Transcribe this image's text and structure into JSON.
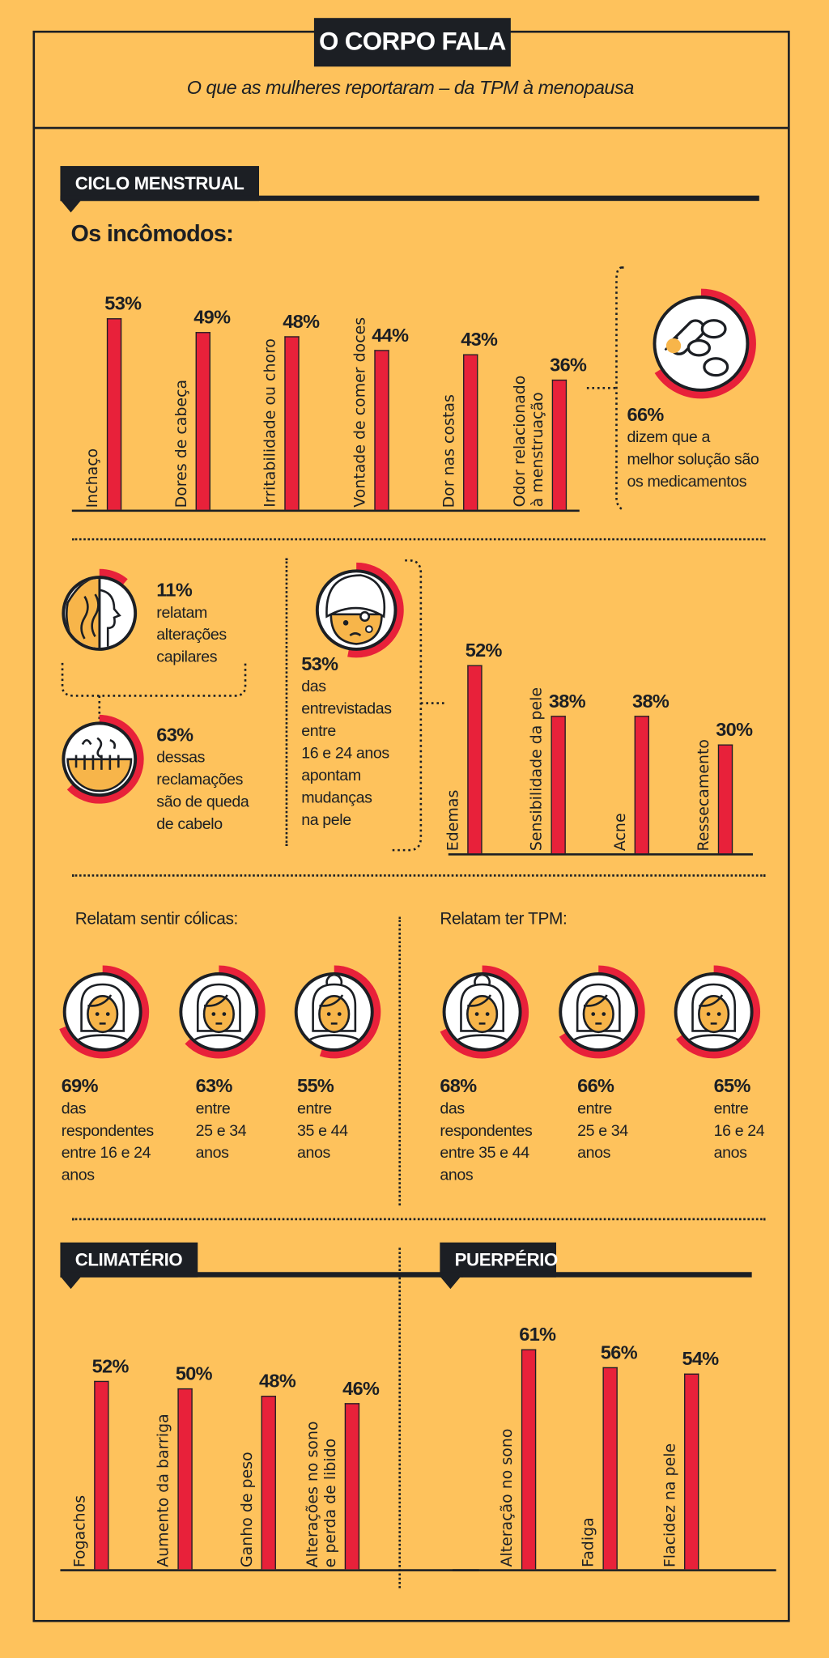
{
  "colors": {
    "background": "#fec25c",
    "accent": "#e8213a",
    "dark": "#1c1f24",
    "skin": "#f7b54a"
  },
  "header": {
    "title": "O CORPO FALA",
    "subtitle": "O que as mulheres reportaram – da TPM à menopausa"
  },
  "sections": {
    "ciclo": "CICLO MENSTRUAL",
    "climaterio": "CLIMATÉRIO",
    "puerperio": "PUERPÉRIO"
  },
  "ciclo": {
    "incomodos_title": "Os incômodos:",
    "medication": {
      "icon": "pills-icon",
      "pct": "66%",
      "value": 66,
      "text": "dizem que a\nmelhor solução são\nos medicamentos"
    },
    "hair": {
      "icon": "hair-icon",
      "pct": "11%",
      "value": 11,
      "text": "relatam\nalterações\ncapilares"
    },
    "hair_loss": {
      "icon": "comb-hair-loss-icon",
      "pct": "63%",
      "value": 63,
      "text": "dessas\nreclamações\nsão de queda\nde cabelo"
    },
    "skin": {
      "icon": "face-skin-icon",
      "pct": "53%",
      "value": 53,
      "text": "das\nentrevistadas\nentre\n16 e 24 anos\napontam\nmudanças\nna pele"
    },
    "colicas": {
      "title": "Relatam sentir cólicas:",
      "items": [
        {
          "icon": "woman-face-icon",
          "pct": "69%",
          "value": 69,
          "text": "das\nrespondentes\nentre 16 e 24\nanos"
        },
        {
          "icon": "woman-face-icon",
          "pct": "63%",
          "value": 63,
          "text": "entre\n25 e 34\nanos"
        },
        {
          "icon": "woman-bun-face-icon",
          "pct": "55%",
          "value": 55,
          "text": "entre\n35 e 44\nanos"
        }
      ]
    },
    "tpm": {
      "title": "Relatam ter TPM:",
      "items": [
        {
          "icon": "woman-bun-face-icon",
          "pct": "68%",
          "value": 68,
          "text": "das\nrespondentes\nentre 35 e 44\nanos"
        },
        {
          "icon": "woman-face-icon",
          "pct": "66%",
          "value": 66,
          "text": "entre\n25 e 34\nanos"
        },
        {
          "icon": "woman-face-icon",
          "pct": "65%",
          "value": 65,
          "text": "entre\n16 e 24\nanos"
        }
      ]
    }
  },
  "chart_data": [
    {
      "type": "bar",
      "id": "incomodos",
      "title": "Os incômodos:",
      "categories": [
        "Inchaço",
        "Dores de cabeça",
        "Irritabilidade ou choro",
        "Vontade de comer doces",
        "Dor nas costas",
        "Odor relacionado\nà menstruação"
      ],
      "values": [
        53,
        49,
        48,
        44,
        43,
        36
      ],
      "labels": [
        "53%",
        "49%",
        "48%",
        "44%",
        "43%",
        "36%"
      ],
      "unit": "%",
      "grid": false
    },
    {
      "type": "bar",
      "id": "pele",
      "categories": [
        "Edemas",
        "Sensibilidade da pele",
        "Acne",
        "Ressecamento"
      ],
      "values": [
        52,
        38,
        38,
        30
      ],
      "labels": [
        "52%",
        "38%",
        "38%",
        "30%"
      ],
      "unit": "%",
      "grid": false
    },
    {
      "type": "bar",
      "id": "climaterio",
      "title": "CLIMATÉRIO",
      "categories": [
        "Fogachos",
        "Aumento da barriga",
        "Ganho de peso",
        "Alterações no sono\ne perda de libido"
      ],
      "values": [
        52,
        50,
        48,
        46
      ],
      "labels": [
        "52%",
        "50%",
        "48%",
        "46%"
      ],
      "unit": "%",
      "grid": false
    },
    {
      "type": "bar",
      "id": "puerperio",
      "title": "PUERPÉRIO",
      "categories": [
        "Alteração no sono",
        "Fadiga",
        "Flacidez na pele"
      ],
      "values": [
        61,
        56,
        54
      ],
      "labels": [
        "61%",
        "56%",
        "54%"
      ],
      "unit": "%",
      "grid": false
    }
  ]
}
